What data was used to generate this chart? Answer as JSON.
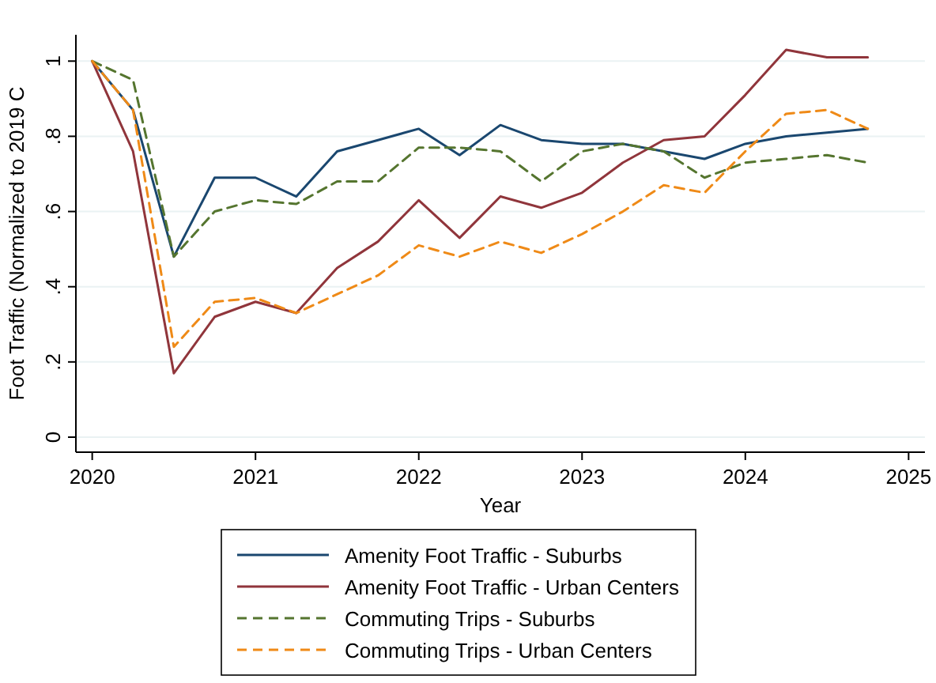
{
  "chart_data": {
    "type": "line",
    "xlabel": "Year",
    "ylabel": "Foot Traffic (Normalized to 2019 C",
    "x": [
      2020,
      2020.25,
      2020.5,
      2020.75,
      2021,
      2021.25,
      2021.5,
      2021.75,
      2022,
      2022.25,
      2022.5,
      2022.75,
      2023,
      2023.25,
      2023.5,
      2023.75,
      2024,
      2024.25,
      2024.5,
      2024.75
    ],
    "xlim": [
      2019.9,
      2025.1
    ],
    "xticks": [
      2020,
      2021,
      2022,
      2023,
      2024,
      2025
    ],
    "ylim": [
      -0.04,
      1.07
    ],
    "yticks": [
      {
        "value": 0,
        "label": "0"
      },
      {
        "value": 0.2,
        "label": ".2"
      },
      {
        "value": 0.4,
        "label": ".4"
      },
      {
        "value": 0.6,
        "label": ".6"
      },
      {
        "value": 0.8,
        "label": ".8"
      },
      {
        "value": 1,
        "label": "1"
      }
    ],
    "grid": "y",
    "legend": "bottom",
    "marker": "none",
    "series": [
      {
        "name": "Amenity Foot Traffic - Suburbs",
        "color": "#1a476f",
        "line_style": "solid",
        "values": [
          1.0,
          0.87,
          0.48,
          0.69,
          0.69,
          0.64,
          0.76,
          0.79,
          0.82,
          0.75,
          0.83,
          0.79,
          0.78,
          0.78,
          0.76,
          0.74,
          0.78,
          0.8,
          0.81,
          0.82
        ]
      },
      {
        "name": "Amenity Foot Traffic - Urban Centers",
        "color": "#90353b",
        "line_style": "solid",
        "values": [
          1.0,
          0.76,
          0.17,
          0.32,
          0.36,
          0.33,
          0.45,
          0.52,
          0.63,
          0.53,
          0.64,
          0.61,
          0.65,
          0.73,
          0.79,
          0.8,
          0.91,
          1.03,
          1.01,
          1.01
        ]
      },
      {
        "name": "Commuting Trips - Suburbs",
        "color": "#55752f",
        "line_style": "dashed",
        "values": [
          1.0,
          0.95,
          0.48,
          0.6,
          0.63,
          0.62,
          0.68,
          0.68,
          0.77,
          0.77,
          0.76,
          0.68,
          0.76,
          0.78,
          0.76,
          0.69,
          0.73,
          0.74,
          0.75,
          0.73
        ]
      },
      {
        "name": "Commuting Trips - Urban Centers",
        "color": "#ef8a17",
        "line_style": "dashed",
        "values": [
          1.0,
          0.87,
          0.24,
          0.36,
          0.37,
          0.33,
          0.38,
          0.43,
          0.51,
          0.48,
          0.52,
          0.49,
          0.54,
          0.6,
          0.67,
          0.65,
          0.76,
          0.86,
          0.87,
          0.82
        ]
      }
    ]
  }
}
